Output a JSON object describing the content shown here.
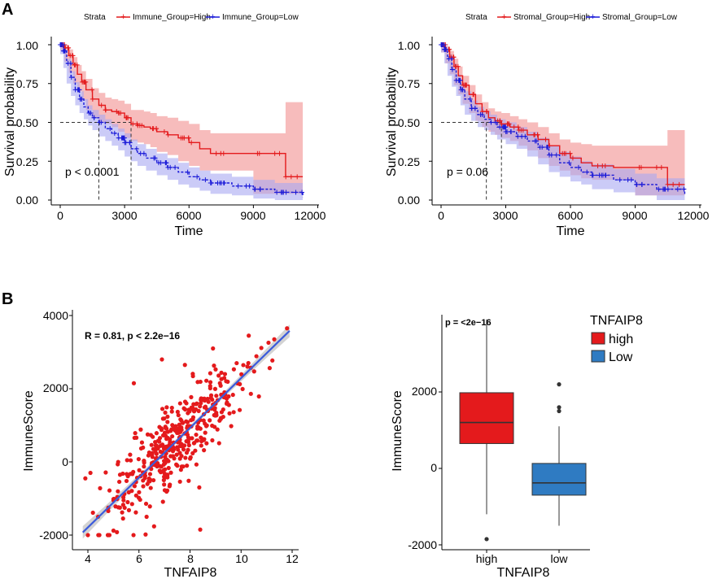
{
  "panel_labels": {
    "a": "A",
    "b": "B"
  },
  "colors": {
    "high": "#e41a1c",
    "low": "#1a1ad8",
    "high_band": "#f4a6a6",
    "low_band": "#a8a8f2",
    "scatter_point": "#e41a1c",
    "fit_line": "#3b5bdb",
    "fit_band": "#c8c8c8",
    "box_high": "#e41a1c",
    "box_low": "#2f7bc2"
  },
  "chart_data": [
    {
      "type": "line",
      "subtype": "kaplan-meier",
      "legend_title": "Strata",
      "legend": [
        "Immune_Group=High",
        "Immune_Group=Low"
      ],
      "xlabel": "Time",
      "ylabel": "Survival probability",
      "xlim": [
        0,
        12000
      ],
      "ylim": [
        0,
        1
      ],
      "xticks": [
        "0",
        "3000",
        "6000",
        "9000",
        "12000"
      ],
      "yticks": [
        "0.00",
        "0.25",
        "0.50",
        "0.75",
        "1.00"
      ],
      "annotation": "p < 0.0001",
      "median_survival": {
        "Immune_Group=High": 3300,
        "Immune_Group=Low": 1800
      },
      "series": [
        {
          "name": "Immune_Group=High",
          "x": [
            0,
            200,
            400,
            600,
            800,
            1000,
            1200,
            1500,
            1800,
            2100,
            2400,
            2700,
            3000,
            3300,
            3600,
            3900,
            4200,
            4500,
            5000,
            5500,
            6000,
            6500,
            7000,
            8000,
            9000,
            10500,
            11300
          ],
          "y": [
            1.0,
            0.98,
            0.93,
            0.87,
            0.81,
            0.76,
            0.71,
            0.65,
            0.61,
            0.58,
            0.57,
            0.56,
            0.53,
            0.49,
            0.48,
            0.47,
            0.46,
            0.44,
            0.42,
            0.4,
            0.37,
            0.33,
            0.3,
            0.3,
            0.3,
            0.15,
            0.15
          ],
          "lower": [
            1.0,
            0.96,
            0.89,
            0.82,
            0.75,
            0.7,
            0.64,
            0.58,
            0.53,
            0.5,
            0.49,
            0.47,
            0.44,
            0.4,
            0.38,
            0.37,
            0.36,
            0.34,
            0.31,
            0.29,
            0.25,
            0.22,
            0.19,
            0.19,
            0.19,
            0.04,
            0.04
          ],
          "upper": [
            1.0,
            1.0,
            0.97,
            0.92,
            0.87,
            0.83,
            0.78,
            0.72,
            0.69,
            0.66,
            0.65,
            0.64,
            0.62,
            0.58,
            0.58,
            0.57,
            0.56,
            0.54,
            0.53,
            0.51,
            0.49,
            0.45,
            0.43,
            0.43,
            0.43,
            0.63,
            0.63
          ]
        },
        {
          "name": "Immune_Group=Low",
          "x": [
            0,
            150,
            300,
            500,
            700,
            900,
            1100,
            1300,
            1500,
            1800,
            2100,
            2400,
            2700,
            3000,
            3300,
            3600,
            4000,
            4500,
            5000,
            5500,
            6000,
            6500,
            7000,
            8000,
            9000,
            10000,
            11300
          ],
          "y": [
            1.0,
            0.96,
            0.88,
            0.79,
            0.71,
            0.65,
            0.6,
            0.56,
            0.53,
            0.5,
            0.46,
            0.43,
            0.4,
            0.37,
            0.33,
            0.3,
            0.27,
            0.24,
            0.21,
            0.18,
            0.15,
            0.13,
            0.11,
            0.09,
            0.07,
            0.05,
            0.02
          ],
          "lower": [
            1.0,
            0.94,
            0.85,
            0.75,
            0.67,
            0.61,
            0.56,
            0.52,
            0.48,
            0.45,
            0.41,
            0.38,
            0.35,
            0.32,
            0.28,
            0.25,
            0.22,
            0.19,
            0.16,
            0.13,
            0.1,
            0.08,
            0.06,
            0.04,
            0.03,
            0.01,
            0.0
          ],
          "upper": [
            1.0,
            0.98,
            0.91,
            0.83,
            0.76,
            0.7,
            0.65,
            0.61,
            0.58,
            0.55,
            0.52,
            0.49,
            0.46,
            0.43,
            0.39,
            0.36,
            0.33,
            0.3,
            0.27,
            0.24,
            0.21,
            0.19,
            0.17,
            0.15,
            0.13,
            0.11,
            0.09
          ]
        }
      ]
    },
    {
      "type": "line",
      "subtype": "kaplan-meier",
      "legend_title": "Strata",
      "legend": [
        "Stromal_Group=High",
        "Stromal_Group=Low"
      ],
      "xlabel": "Time",
      "ylabel": "Survival probability",
      "xlim": [
        0,
        12000
      ],
      "ylim": [
        0,
        1
      ],
      "xticks": [
        "0",
        "3000",
        "6000",
        "9000",
        "12000"
      ],
      "yticks": [
        "0.00",
        "0.25",
        "0.50",
        "0.75",
        "1.00"
      ],
      "annotation": "p = 0.06",
      "median_survival": {
        "Stromal_Group=High": 2800,
        "Stromal_Group=Low": 2100
      },
      "series": [
        {
          "name": "Stromal_Group=High",
          "x": [
            0,
            200,
            400,
            600,
            800,
            1000,
            1300,
            1600,
            1900,
            2200,
            2500,
            2800,
            3200,
            3600,
            4000,
            4500,
            5000,
            5500,
            6000,
            6500,
            7000,
            8000,
            9000,
            10500,
            11300
          ],
          "y": [
            1.0,
            0.97,
            0.92,
            0.86,
            0.8,
            0.74,
            0.68,
            0.62,
            0.57,
            0.53,
            0.51,
            0.49,
            0.47,
            0.45,
            0.42,
            0.39,
            0.35,
            0.3,
            0.27,
            0.24,
            0.22,
            0.21,
            0.21,
            0.1,
            0.1
          ],
          "lower": [
            1.0,
            0.95,
            0.88,
            0.81,
            0.74,
            0.68,
            0.62,
            0.56,
            0.51,
            0.47,
            0.44,
            0.42,
            0.4,
            0.38,
            0.35,
            0.32,
            0.27,
            0.22,
            0.19,
            0.16,
            0.14,
            0.13,
            0.13,
            0.03,
            0.03
          ],
          "upper": [
            1.0,
            0.99,
            0.96,
            0.91,
            0.86,
            0.8,
            0.74,
            0.68,
            0.63,
            0.59,
            0.57,
            0.56,
            0.54,
            0.52,
            0.5,
            0.47,
            0.43,
            0.39,
            0.37,
            0.36,
            0.35,
            0.35,
            0.35,
            0.45,
            0.45
          ]
        },
        {
          "name": "Stromal_Group=Low",
          "x": [
            0,
            150,
            300,
            500,
            700,
            900,
            1100,
            1400,
            1700,
            2000,
            2300,
            2600,
            3000,
            3500,
            4000,
            4500,
            5000,
            5500,
            6000,
            6500,
            7000,
            8000,
            9000,
            10000,
            11300
          ],
          "y": [
            1.0,
            0.97,
            0.91,
            0.84,
            0.77,
            0.71,
            0.65,
            0.59,
            0.55,
            0.52,
            0.5,
            0.47,
            0.44,
            0.41,
            0.38,
            0.34,
            0.29,
            0.24,
            0.21,
            0.18,
            0.16,
            0.13,
            0.1,
            0.07,
            0.03
          ],
          "lower": [
            1.0,
            0.95,
            0.88,
            0.8,
            0.73,
            0.67,
            0.61,
            0.55,
            0.51,
            0.47,
            0.45,
            0.42,
            0.39,
            0.36,
            0.33,
            0.28,
            0.23,
            0.18,
            0.15,
            0.12,
            0.1,
            0.07,
            0.05,
            0.03,
            0.0
          ],
          "upper": [
            1.0,
            0.99,
            0.94,
            0.88,
            0.81,
            0.75,
            0.7,
            0.64,
            0.6,
            0.57,
            0.55,
            0.52,
            0.5,
            0.47,
            0.44,
            0.4,
            0.35,
            0.31,
            0.28,
            0.25,
            0.23,
            0.2,
            0.17,
            0.14,
            0.1
          ]
        }
      ]
    },
    {
      "type": "scatter",
      "xlabel": "TNFAIP8",
      "ylabel": "ImmuneScore",
      "xlim": [
        3.5,
        12.5
      ],
      "ylim": [
        -2300,
        4100
      ],
      "xticks": [
        4,
        6,
        8,
        10,
        12
      ],
      "yticks": [
        -2000,
        0,
        2000,
        4000
      ],
      "annotation": "R = 0.81, p < 2.2e−16",
      "fit": {
        "slope": 680,
        "intercept": -4510,
        "x_range": [
          3.8,
          11.9
        ],
        "ci_halfwidth_ends": 170,
        "ci_halfwidth_center": 60
      },
      "cloud": {
        "n": 420,
        "x_mean": 7.4,
        "x_sd": 1.35,
        "residual_sd": 560,
        "x_clip": [
          4.0,
          11.8
        ]
      },
      "highlight_points": [
        {
          "x": 3.9,
          "y": -450
        },
        {
          "x": 4.1,
          "y": -300
        },
        {
          "x": 5.8,
          "y": 2150
        },
        {
          "x": 6.9,
          "y": 2800
        },
        {
          "x": 7.8,
          "y": 2650
        },
        {
          "x": 8.4,
          "y": -1850
        },
        {
          "x": 10.3,
          "y": 3450
        },
        {
          "x": 11.3,
          "y": 3350
        },
        {
          "x": 11.8,
          "y": 3650
        },
        {
          "x": 8.9,
          "y": 3100
        },
        {
          "x": 6.3,
          "y": -1500
        },
        {
          "x": 4.8,
          "y": -1250
        }
      ]
    },
    {
      "type": "box",
      "xlabel": "TNFAIP8",
      "ylabel": "ImmuneScore",
      "categories": [
        "high",
        "low"
      ],
      "ylim": [
        -2100,
        3950
      ],
      "yticks": [
        -2000,
        0,
        2000
      ],
      "annotation": "p = <2e−16",
      "legend_title": "TNFAIP8",
      "legend": [
        "high",
        "Low"
      ],
      "boxes": [
        {
          "name": "high",
          "min": -1200,
          "q1": 650,
          "median": 1200,
          "q3": 1980,
          "max": 3900,
          "outliers": [
            -1850
          ]
        },
        {
          "name": "low",
          "min": -1500,
          "q1": -700,
          "median": -380,
          "q3": 130,
          "max": 1100,
          "outliers": [
            1500,
            1600,
            2200
          ]
        }
      ]
    }
  ]
}
